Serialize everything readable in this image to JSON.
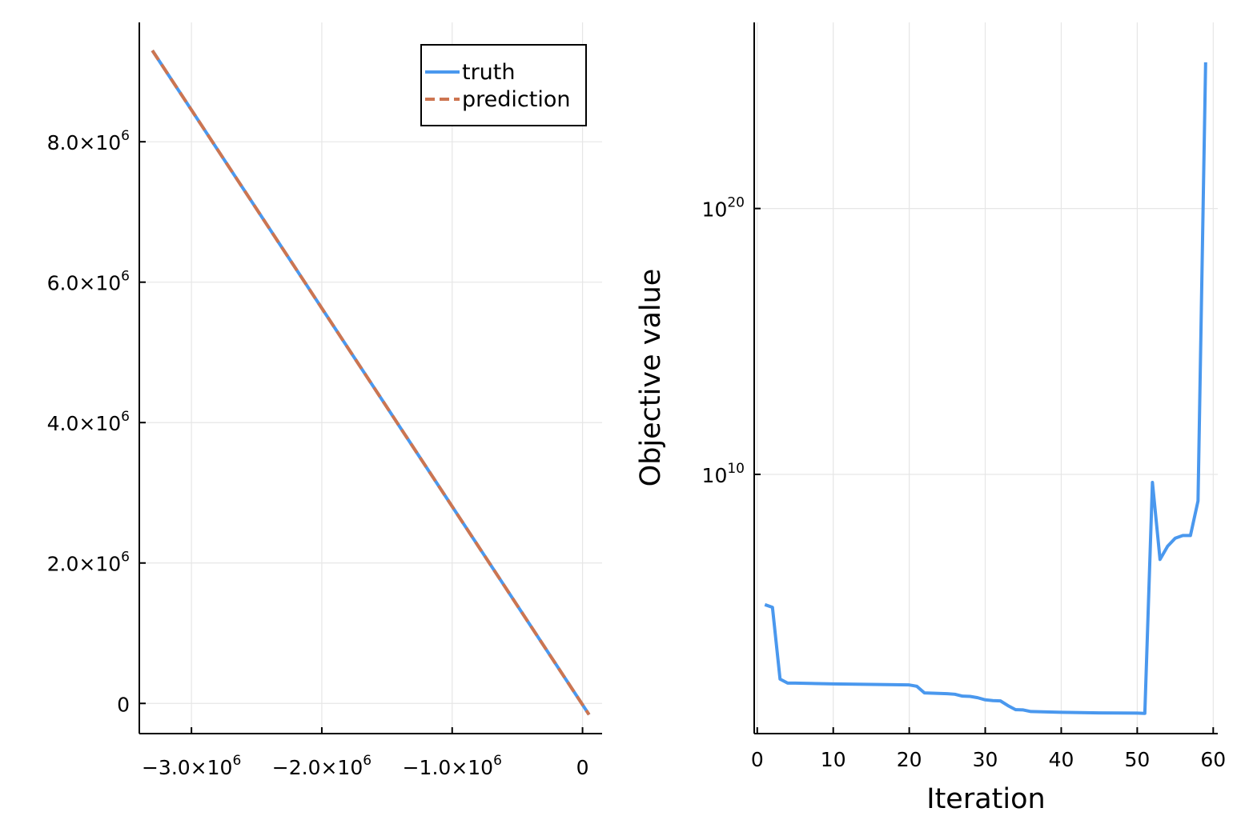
{
  "colors": {
    "truth": "#4a98ee",
    "prediction": "#cd7550",
    "grid": "#e6e6e6",
    "axis": "#000000"
  },
  "chart_data": [
    {
      "type": "line",
      "xlabel": "",
      "ylabel": "",
      "xlim": [
        -3400000,
        150000
      ],
      "ylim": [
        -430000,
        9700000
      ],
      "grid": true,
      "legend_position": "top-right",
      "x_ticks": [
        {
          "value": -3000000,
          "mant": "−3.0×10",
          "exp": "6"
        },
        {
          "value": -2000000,
          "mant": "−2.0×10",
          "exp": "6"
        },
        {
          "value": -1000000,
          "mant": "−1.0×10",
          "exp": "6"
        },
        {
          "value": 0,
          "mant": "0",
          "exp": ""
        }
      ],
      "y_ticks": [
        {
          "value": 0,
          "mant": "0",
          "exp": ""
        },
        {
          "value": 2000000,
          "mant": "2.0×10",
          "exp": "6"
        },
        {
          "value": 4000000,
          "mant": "4.0×10",
          "exp": "6"
        },
        {
          "value": 6000000,
          "mant": "6.0×10",
          "exp": "6"
        },
        {
          "value": 8000000,
          "mant": "8.0×10",
          "exp": "6"
        }
      ],
      "series": [
        {
          "name": "truth",
          "style": "solid",
          "color": "#4a98ee",
          "points": [
            [
              -3300000,
              9300000
            ],
            [
              50000,
              -160000
            ]
          ]
        },
        {
          "name": "prediction",
          "style": "dashed",
          "color": "#cd7550",
          "points": [
            [
              -3300000,
              9300000
            ],
            [
              50000,
              -160000
            ]
          ]
        }
      ]
    },
    {
      "type": "line",
      "xlabel": "Iteration",
      "ylabel": "Objective value",
      "xlim": [
        -0.4,
        60.6
      ],
      "ylim": [
        0.25,
        27.0
      ],
      "yscale": "log10",
      "grid": true,
      "x_ticks": [
        {
          "value": 0,
          "label": "0"
        },
        {
          "value": 10,
          "label": "10"
        },
        {
          "value": 20,
          "label": "20"
        },
        {
          "value": 30,
          "label": "30"
        },
        {
          "value": 40,
          "label": "40"
        },
        {
          "value": 50,
          "label": "50"
        },
        {
          "value": 60,
          "label": "60"
        }
      ],
      "y_ticks": [
        {
          "value": 10,
          "mant": "10",
          "exp": "10"
        },
        {
          "value": 20,
          "mant": "10",
          "exp": "20"
        }
      ],
      "series": [
        {
          "color": "#4a98ee",
          "x": [
            1,
            2,
            3,
            4,
            5,
            10,
            15,
            20,
            21,
            22,
            25,
            26,
            27,
            28,
            29,
            30,
            31,
            32,
            33,
            34,
            35,
            36,
            40,
            45,
            50,
            51,
            52,
            53,
            54,
            55,
            56,
            57,
            58,
            59
          ],
          "log10_y": [
            5.1,
            5.0,
            2.3,
            2.15,
            2.15,
            2.12,
            2.1,
            2.08,
            2.03,
            1.78,
            1.75,
            1.73,
            1.66,
            1.65,
            1.6,
            1.52,
            1.49,
            1.48,
            1.3,
            1.15,
            1.14,
            1.08,
            1.05,
            1.03,
            1.02,
            1.01,
            9.7,
            6.8,
            7.3,
            7.6,
            7.7,
            7.7,
            9.0,
            25.5
          ]
        }
      ]
    }
  ]
}
